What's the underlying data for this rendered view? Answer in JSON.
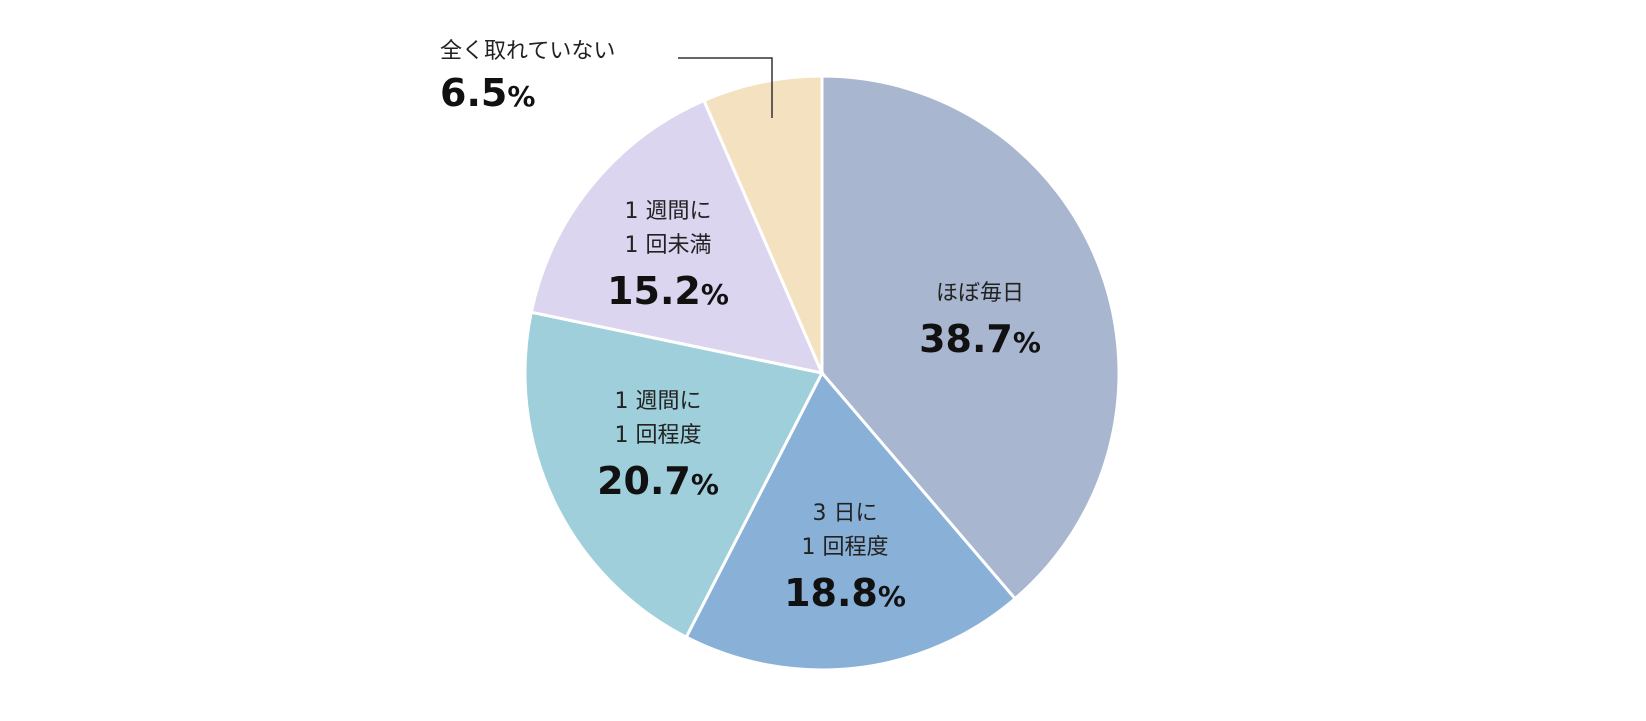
{
  "chart_data": {
    "type": "pie",
    "unit": "%",
    "start": "top",
    "direction": "clockwise",
    "slices": [
      {
        "label_lines": [
          "ほぼ毎日"
        ],
        "value": 38.7,
        "color": "#a8b6cf"
      },
      {
        "label_lines": [
          "3 日に",
          "1 回程度"
        ],
        "value": 18.8,
        "color": "#89b0d7"
      },
      {
        "label_lines": [
          "1 週間に",
          "1 回程度"
        ],
        "value": 20.7,
        "color": "#9ecfdb"
      },
      {
        "label_lines": [
          "1 週間に",
          "1 回未満"
        ],
        "value": 15.2,
        "color": "#dcd5f0"
      },
      {
        "label_lines": [
          "全く取れていない"
        ],
        "value": 6.5,
        "color": "#f3e1c0",
        "label_outside": true
      }
    ],
    "value_labels": [
      "38.7",
      "18.8",
      "20.7",
      "15.2",
      "6.5"
    ]
  }
}
